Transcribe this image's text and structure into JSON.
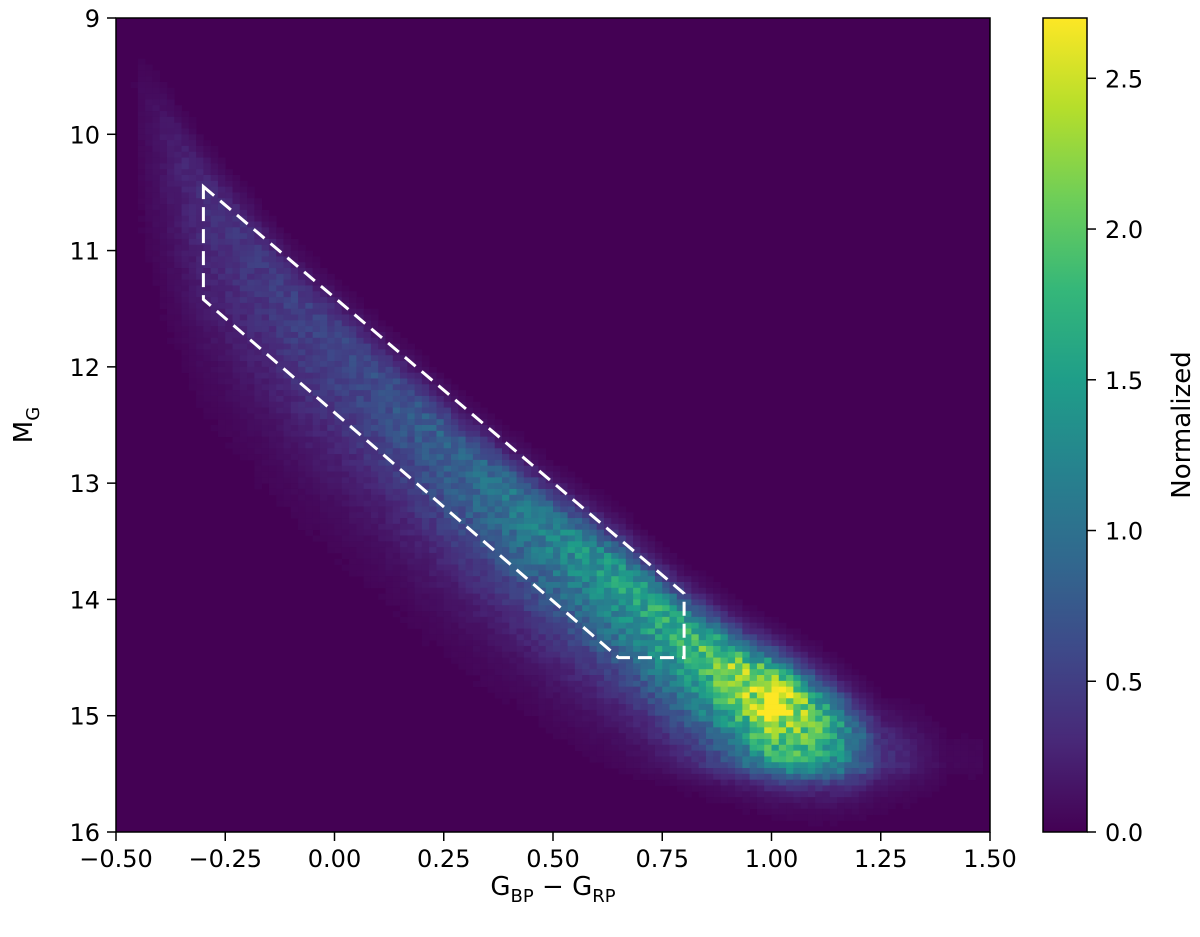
{
  "chart_data": {
    "type": "heatmap",
    "title": "",
    "xlabel": {
      "main_a": "G",
      "sub_a": "BP",
      "op": " − ",
      "main_b": "G",
      "sub_b": "RP"
    },
    "ylabel": {
      "main": "M",
      "sub": "G"
    },
    "colorbar_label": "Normalized",
    "xlim": [
      -0.5,
      1.5
    ],
    "ylim": [
      16,
      9
    ],
    "y_inverted": true,
    "x_ticks": [
      {
        "value": -0.5,
        "label": "−0.50"
      },
      {
        "value": -0.25,
        "label": "−0.25"
      },
      {
        "value": 0.0,
        "label": "0.00"
      },
      {
        "value": 0.25,
        "label": "0.25"
      },
      {
        "value": 0.5,
        "label": "0.50"
      },
      {
        "value": 0.75,
        "label": "0.75"
      },
      {
        "value": 1.0,
        "label": "1.00"
      },
      {
        "value": 1.25,
        "label": "1.25"
      },
      {
        "value": 1.5,
        "label": "1.50"
      }
    ],
    "y_ticks": [
      {
        "value": 9,
        "label": "9"
      },
      {
        "value": 10,
        "label": "10"
      },
      {
        "value": 11,
        "label": "11"
      },
      {
        "value": 12,
        "label": "12"
      },
      {
        "value": 13,
        "label": "13"
      },
      {
        "value": 14,
        "label": "14"
      },
      {
        "value": 15,
        "label": "15"
      },
      {
        "value": 16,
        "label": "16"
      }
    ],
    "colorbar_range": [
      0.0,
      2.7
    ],
    "colorbar_ticks": [
      {
        "value": 0.0,
        "label": "0.0"
      },
      {
        "value": 0.5,
        "label": "0.5"
      },
      {
        "value": 1.0,
        "label": "1.0"
      },
      {
        "value": 1.5,
        "label": "1.5"
      },
      {
        "value": 2.0,
        "label": "2.0"
      },
      {
        "value": 2.5,
        "label": "2.5"
      }
    ],
    "colormap": "viridis",
    "colormap_stops": [
      "#440154",
      "#482878",
      "#3e4989",
      "#31688e",
      "#26828e",
      "#1f9e89",
      "#35b779",
      "#6ece58",
      "#b5de2b",
      "#fde725"
    ],
    "density_ridge": {
      "description_points": [
        {
          "x": -0.45,
          "y": 9.6,
          "value": 0.05
        },
        {
          "x": -0.3,
          "y": 10.5,
          "value": 0.35
        },
        {
          "x": -0.1,
          "y": 11.4,
          "value": 0.5
        },
        {
          "x": 0.1,
          "y": 12.1,
          "value": 0.65
        },
        {
          "x": 0.3,
          "y": 12.8,
          "value": 0.9
        },
        {
          "x": 0.5,
          "y": 13.4,
          "value": 1.2
        },
        {
          "x": 0.65,
          "y": 13.8,
          "value": 1.5
        },
        {
          "x": 0.8,
          "y": 14.3,
          "value": 1.7
        },
        {
          "x": 0.95,
          "y": 14.7,
          "value": 2.3
        },
        {
          "x": 1.0,
          "y": 14.8,
          "value": 2.7
        },
        {
          "x": 1.05,
          "y": 14.9,
          "value": 2.4
        },
        {
          "x": 1.15,
          "y": 15.1,
          "value": 1.5
        },
        {
          "x": 1.25,
          "y": 15.3,
          "value": 0.4
        },
        {
          "x": 1.4,
          "y": 15.4,
          "value": 0.05
        }
      ]
    },
    "selection_polygon": {
      "style": "dashed",
      "color": "#ffffff",
      "vertices": [
        {
          "x": -0.3,
          "y": 10.45
        },
        {
          "x": 0.8,
          "y": 13.95
        },
        {
          "x": 0.8,
          "y": 14.5
        },
        {
          "x": 0.65,
          "y": 14.5
        },
        {
          "x": -0.3,
          "y": 11.42
        }
      ]
    }
  }
}
